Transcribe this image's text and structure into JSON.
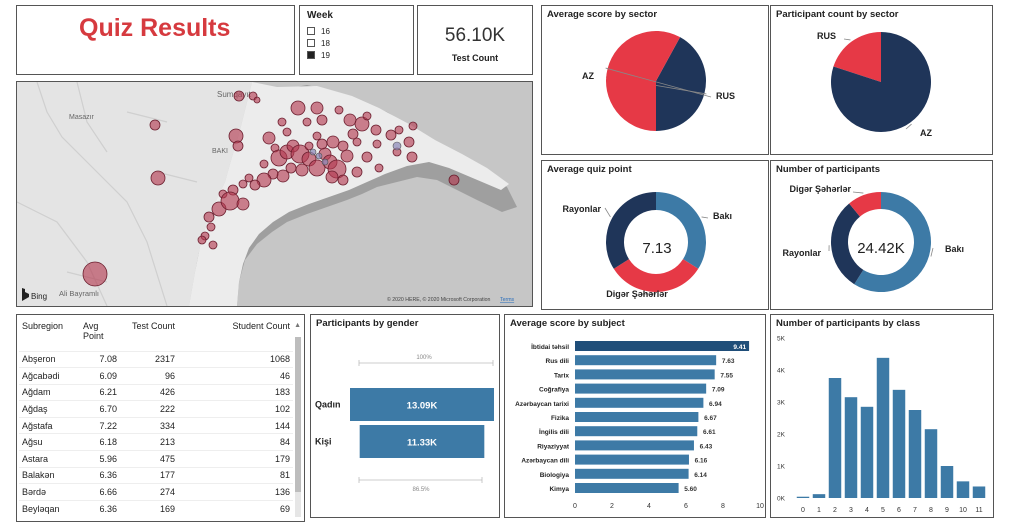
{
  "header": {
    "title": "Quiz Results"
  },
  "week_slicer": {
    "title": "Week",
    "options": [
      {
        "label": "16",
        "checked": false
      },
      {
        "label": "18",
        "checked": false
      },
      {
        "label": "19",
        "checked": true
      }
    ]
  },
  "kpi": {
    "value": "56.10K",
    "label": "Test Count"
  },
  "map": {
    "labels": {
      "sumqayit": "Sumqayıt",
      "masazir": "Masazır",
      "baki": "BAKI",
      "ali_bayramli": "Ali Bayramlı"
    },
    "bing": "Bing",
    "copyright": "© 2020 HERE, © 2020 Microsoft Corporation",
    "terms": "Terms"
  },
  "avg_score_sector": {
    "title": "Average  score by sector",
    "chart_data": {
      "type": "pie",
      "slices": [
        {
          "label": "AZ",
          "value": 0.42,
          "color": "#1f3559"
        },
        {
          "label": "RUS",
          "value": 0.58,
          "color": "#e63946"
        }
      ]
    }
  },
  "participant_sector": {
    "title": "Participant count by sector",
    "chart_data": {
      "type": "pie",
      "slices": [
        {
          "label": "RUS",
          "value": 0.2,
          "color": "#e63946"
        },
        {
          "label": "AZ",
          "value": 0.8,
          "color": "#1f3559"
        }
      ]
    }
  },
  "avg_quiz_point": {
    "title": "Average quiz point",
    "center": "7.13",
    "chart_data": {
      "type": "pie",
      "slices": [
        {
          "label": "Bakı",
          "value": 0.34,
          "color": "#3d7aa6"
        },
        {
          "label": "Digər Şəhərlər",
          "value": 0.32,
          "color": "#e63946"
        },
        {
          "label": "Rayonlar",
          "value": 0.34,
          "color": "#1f3559"
        }
      ]
    }
  },
  "num_participants": {
    "title": "Number of participants",
    "center": "24.42K",
    "chart_data": {
      "type": "pie",
      "slices": [
        {
          "label": "Bakı",
          "value": 0.59,
          "color": "#3d7aa6"
        },
        {
          "label": "Rayonlar",
          "value": 0.3,
          "color": "#1f3559"
        },
        {
          "label": "Digər Şəhərlər",
          "value": 0.11,
          "color": "#e63946"
        }
      ]
    }
  },
  "subregion_table": {
    "columns": [
      "Subregion",
      "Avg Point",
      "Test Count",
      "Student Count"
    ],
    "rows": [
      [
        "Abşeron",
        "7.08",
        "2317",
        "1068"
      ],
      [
        "Ağcabədi",
        "6.09",
        "96",
        "46"
      ],
      [
        "Ağdam",
        "6.21",
        "426",
        "183"
      ],
      [
        "Ağdaş",
        "6.70",
        "222",
        "102"
      ],
      [
        "Ağstafa",
        "7.22",
        "334",
        "144"
      ],
      [
        "Ağsu",
        "6.18",
        "213",
        "84"
      ],
      [
        "Astara",
        "5.96",
        "475",
        "179"
      ],
      [
        "Balakən",
        "6.36",
        "177",
        "81"
      ],
      [
        "Bərdə",
        "6.66",
        "274",
        "136"
      ],
      [
        "Beyləqan",
        "6.36",
        "169",
        "69"
      ]
    ]
  },
  "gender": {
    "title": "Participants by gender",
    "top_axis": "100%",
    "bottom_axis": "86.5%",
    "chart_data": {
      "type": "bar",
      "categories": [
        "Qadın",
        "Kişi"
      ],
      "values": [
        13.09,
        11.33
      ],
      "labels": [
        "13.09K",
        "11.33K"
      ]
    }
  },
  "subject": {
    "title": "Average score by subject",
    "chart_data": {
      "type": "bar",
      "categories": [
        "İbtidai təhsil",
        "Rus dili",
        "Tarix",
        "Coğrafiya",
        "Azərbaycan tarixi",
        "Fizika",
        "İngilis dili",
        "Riyaziyyat",
        "Azərbaycan dili",
        "Biologiya",
        "Kimya"
      ],
      "values": [
        9.41,
        7.63,
        7.55,
        7.09,
        6.94,
        6.67,
        6.61,
        6.43,
        6.16,
        6.14,
        5.6
      ],
      "xlim": [
        0,
        10
      ],
      "xticks": [
        "0",
        "2",
        "4",
        "6",
        "8",
        "10"
      ]
    }
  },
  "by_class": {
    "title": "Number of participants by class",
    "chart_data": {
      "type": "bar",
      "categories": [
        "0",
        "1",
        "2",
        "3",
        "4",
        "5",
        "6",
        "7",
        "8",
        "9",
        "10",
        "11"
      ],
      "values": [
        40,
        120,
        3750,
        3150,
        2850,
        4380,
        3380,
        2750,
        2150,
        1000,
        520,
        360
      ],
      "ylim": [
        0,
        5000
      ],
      "yticks": [
        "0K",
        "1K",
        "2K",
        "3K",
        "4K",
        "5K"
      ]
    }
  }
}
